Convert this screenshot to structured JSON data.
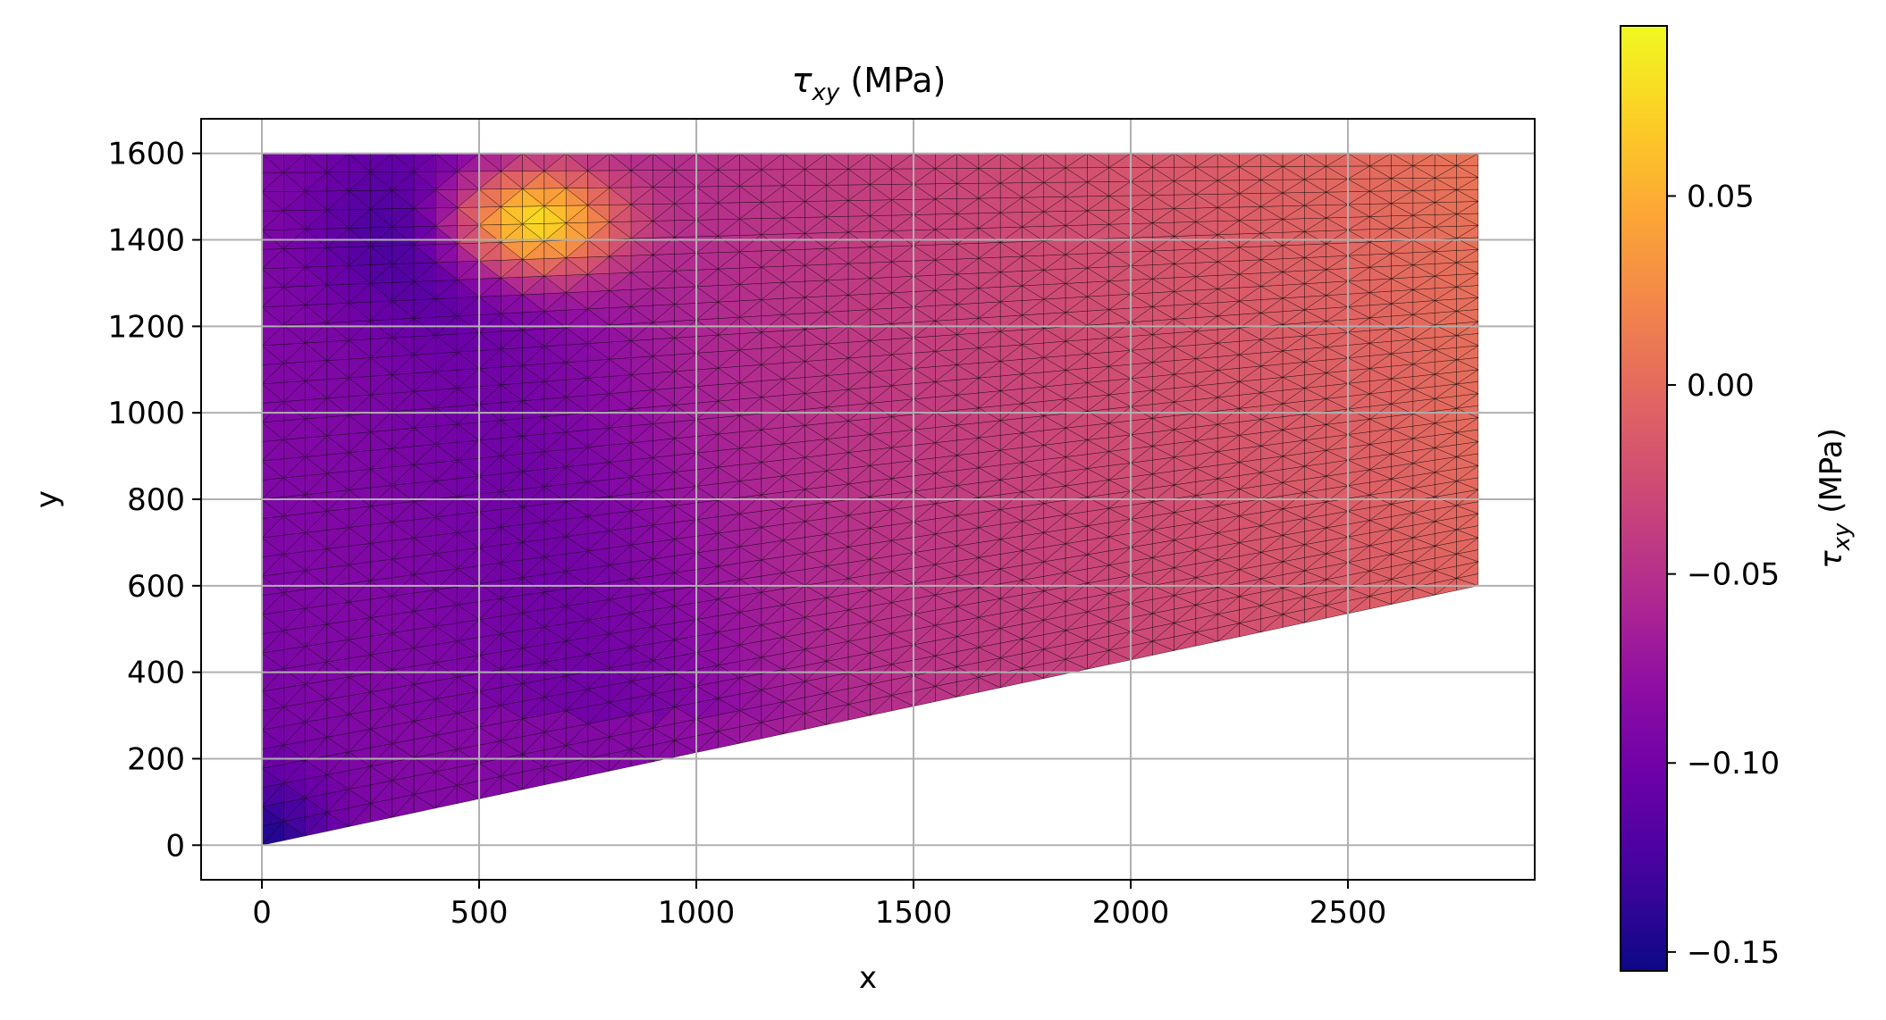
{
  "chart_data": {
    "type": "heatmap",
    "subtype": "triangular-mesh",
    "title": {
      "symbol": "τ",
      "sub": "xy",
      "suffix": " (MPa)"
    },
    "xlabel": "x",
    "ylabel": "y",
    "xlim": [
      -140,
      2930
    ],
    "ylim": [
      -80,
      1680
    ],
    "xticks": [
      0,
      500,
      1000,
      1500,
      2000,
      2500
    ],
    "yticks": [
      0,
      200,
      400,
      600,
      800,
      1000,
      1200,
      1400,
      1600
    ],
    "grid": true,
    "colormap": "plasma",
    "colorbar": {
      "label": {
        "symbol": "τ",
        "sub": "xy",
        "suffix": " (MPa)"
      },
      "range": [
        -0.155,
        0.095
      ],
      "ticks": [
        -0.15,
        -0.1,
        -0.05,
        0.0,
        0.05
      ],
      "tick_labels": [
        "−0.15",
        "−0.10",
        "−0.05",
        "0.00",
        "0.05"
      ]
    },
    "domain_polygon": [
      [
        0,
        0
      ],
      [
        2800,
        600
      ],
      [
        2800,
        1600
      ],
      [
        0,
        1600
      ]
    ],
    "stress_features": {
      "far_field": 0.0,
      "min_value": -0.155,
      "max_value": 0.095,
      "hotspot": [
        600,
        1440
      ],
      "low_zone": [
        420,
        1420
      ]
    }
  }
}
